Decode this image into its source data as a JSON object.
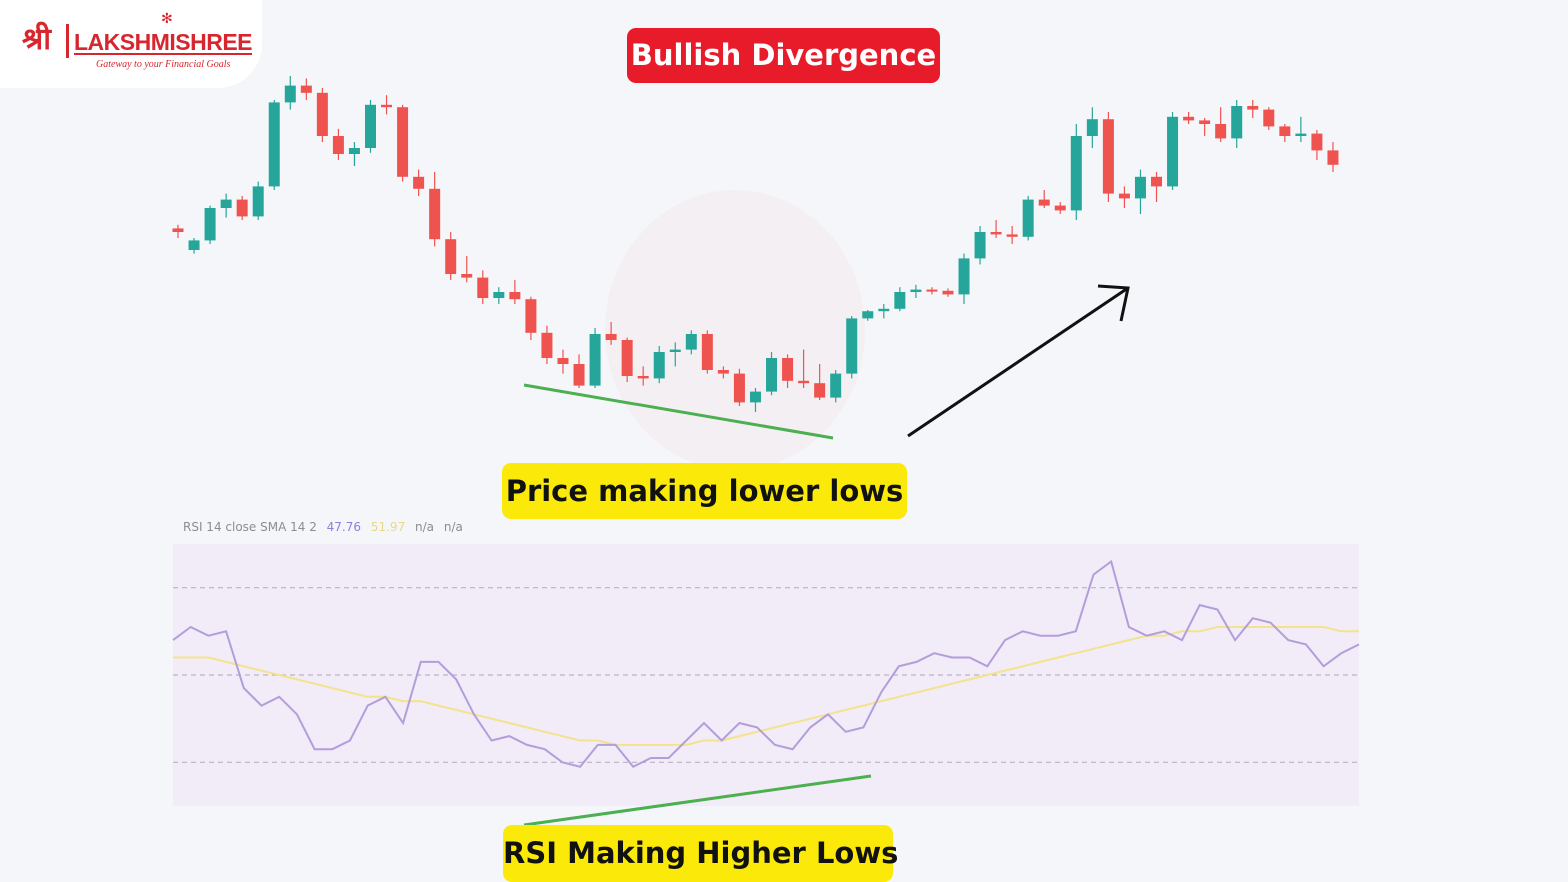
{
  "brand": {
    "logo_glyph": "श्री",
    "name": "LAKSHMISHREE",
    "tagline": "Gateway to your Financial Goals",
    "color": "#d7262e"
  },
  "title": "Bullish Divergence",
  "annotations": {
    "price": "Price making lower lows",
    "rsi": "RSI Making Higher Lows"
  },
  "colors": {
    "up": "#26a69a",
    "down": "#ef5350",
    "rsi_line": "#b39ddb",
    "sma_line": "#f2e38c",
    "trend_line": "#4caf50",
    "title_bg": "#e81b2b",
    "callout_bg": "#fbe90a",
    "rsi_band": "#f1ecf8"
  },
  "rsi_legend": {
    "label": "RSI 14 close SMA 14 2",
    "rsi_value": "47.76",
    "sma_value": "51.97",
    "na1": "n/a",
    "na2": "n/a"
  },
  "chart_data": [
    {
      "type": "candlestick",
      "title": "",
      "ohlc": [
        [
          133,
          136,
          125,
          130
        ],
        [
          115,
          125,
          112,
          123
        ],
        [
          123,
          152,
          120,
          150
        ],
        [
          150,
          162,
          142,
          157
        ],
        [
          157,
          160,
          140,
          143
        ],
        [
          143,
          172,
          140,
          168
        ],
        [
          168,
          240,
          165,
          238
        ],
        [
          238,
          260,
          232,
          252
        ],
        [
          252,
          258,
          240,
          246
        ],
        [
          246,
          250,
          205,
          210
        ],
        [
          210,
          216,
          190,
          195
        ],
        [
          195,
          205,
          185,
          200
        ],
        [
          200,
          240,
          196,
          236
        ],
        [
          236,
          244,
          228,
          234
        ],
        [
          234,
          236,
          172,
          176
        ],
        [
          176,
          182,
          160,
          166
        ],
        [
          166,
          180,
          118,
          124
        ],
        [
          124,
          130,
          90,
          95
        ],
        [
          95,
          110,
          88,
          92
        ],
        [
          92,
          98,
          70,
          75
        ],
        [
          75,
          84,
          70,
          80
        ],
        [
          80,
          90,
          70,
          74
        ],
        [
          74,
          76,
          40,
          46
        ],
        [
          46,
          52,
          20,
          25
        ],
        [
          25,
          32,
          12,
          20
        ],
        [
          20,
          28,
          0,
          2
        ],
        [
          2,
          50,
          0,
          45
        ],
        [
          45,
          55,
          36,
          40
        ],
        [
          40,
          42,
          5,
          10
        ],
        [
          10,
          18,
          2,
          8
        ],
        [
          8,
          35,
          4,
          30
        ],
        [
          30,
          38,
          18,
          32
        ],
        [
          32,
          48,
          28,
          45
        ],
        [
          45,
          48,
          12,
          15
        ],
        [
          15,
          18,
          8,
          12
        ],
        [
          12,
          16,
          -15,
          -12
        ],
        [
          -12,
          0,
          -20,
          -3
        ],
        [
          -3,
          30,
          -6,
          25
        ],
        [
          25,
          28,
          0,
          6
        ],
        [
          6,
          32,
          0,
          4
        ],
        [
          4,
          20,
          -10,
          -8
        ],
        [
          -8,
          15,
          -12,
          12
        ],
        [
          12,
          60,
          8,
          58
        ],
        [
          58,
          65,
          56,
          64
        ],
        [
          64,
          70,
          58,
          66
        ],
        [
          66,
          84,
          64,
          80
        ],
        [
          80,
          86,
          75,
          82
        ],
        [
          82,
          84,
          78,
          81
        ],
        [
          81,
          83,
          76,
          78
        ],
        [
          78,
          112,
          70,
          108
        ],
        [
          108,
          135,
          103,
          130
        ],
        [
          130,
          140,
          125,
          128
        ],
        [
          128,
          135,
          120,
          126
        ],
        [
          126,
          160,
          123,
          157
        ],
        [
          157,
          165,
          150,
          152
        ],
        [
          152,
          155,
          145,
          148
        ],
        [
          148,
          220,
          140,
          210
        ],
        [
          210,
          234,
          200,
          224
        ],
        [
          224,
          230,
          155,
          162
        ],
        [
          162,
          168,
          150,
          158
        ],
        [
          158,
          182,
          145,
          176
        ],
        [
          176,
          180,
          155,
          168
        ],
        [
          168,
          230,
          165,
          226
        ],
        [
          226,
          230,
          220,
          223
        ],
        [
          223,
          225,
          210,
          220
        ],
        [
          220,
          234,
          205,
          208
        ],
        [
          208,
          240,
          200,
          235
        ],
        [
          235,
          240,
          225,
          232
        ],
        [
          232,
          234,
          215,
          218
        ],
        [
          218,
          220,
          205,
          210
        ],
        [
          210,
          226,
          205,
          212
        ],
        [
          212,
          215,
          190,
          198
        ],
        [
          198,
          205,
          180,
          186
        ]
      ],
      "x_range": [
        0,
        73
      ],
      "y_range": [
        -35,
        240
      ]
    },
    {
      "type": "line",
      "title": "",
      "ylim": [
        20,
        80
      ],
      "levels": [
        30,
        50,
        70
      ],
      "series": [
        {
          "name": "RSI",
          "values": [
            58,
            61,
            59,
            60,
            47,
            43,
            45,
            41,
            33,
            33,
            35,
            43,
            45,
            39,
            53,
            53,
            49,
            41,
            35,
            36,
            34,
            33,
            30,
            29,
            34,
            34,
            29,
            31,
            31,
            35,
            39,
            35,
            39,
            38,
            34,
            33,
            38,
            41,
            37,
            38,
            46,
            52,
            53,
            55,
            54,
            54,
            52,
            58,
            60,
            59,
            59,
            60,
            73,
            76,
            61,
            59,
            60,
            58,
            66,
            65,
            58,
            63,
            62,
            58,
            57,
            52,
            55,
            57
          ]
        },
        {
          "name": "SMA",
          "values": [
            54,
            54,
            54,
            53,
            52,
            51,
            50,
            49,
            48,
            47,
            46,
            45,
            45,
            44,
            44,
            43,
            42,
            41,
            40,
            39,
            38,
            37,
            36,
            35,
            35,
            34,
            34,
            34,
            34,
            34,
            35,
            35,
            36,
            37,
            38,
            39,
            40,
            41,
            42,
            43,
            44,
            45,
            46,
            47,
            48,
            49,
            50,
            51,
            52,
            53,
            54,
            55,
            56,
            57,
            58,
            59,
            59,
            60,
            60,
            61,
            61,
            61,
            61,
            61,
            61,
            61,
            60,
            60
          ]
        }
      ]
    }
  ]
}
